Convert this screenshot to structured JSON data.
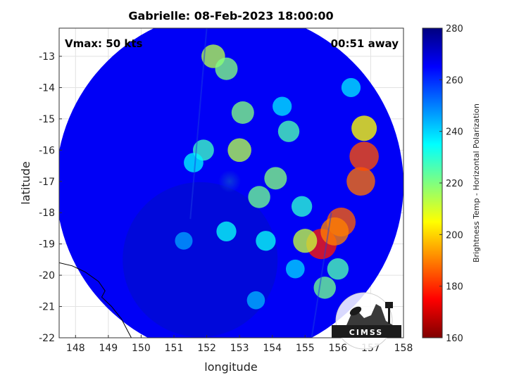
{
  "chart_data": {
    "type": "heatmap",
    "title": "Gabrielle: 08-Feb-2023 18:00:00",
    "xlabel": "longitude",
    "ylabel": "latitude",
    "xlim": [
      147.5,
      158
    ],
    "ylim": [
      -22,
      -12.1
    ],
    "xticks": [
      148,
      149,
      150,
      151,
      152,
      153,
      154,
      155,
      156,
      157,
      158
    ],
    "yticks": [
      -13,
      -14,
      -15,
      -16,
      -17,
      -18,
      -19,
      -20,
      -21,
      -22
    ],
    "grid": true,
    "annotations": {
      "vmax": "Vmax: 50 kts",
      "time_away": "00:51 away"
    },
    "colorbar": {
      "label": "Brightness Temp - Horizontal Polarization",
      "range": [
        160,
        280
      ],
      "ticks": [
        160,
        180,
        200,
        220,
        240,
        260,
        280
      ]
    },
    "scan": {
      "center": [
        152.7,
        -17.1
      ],
      "radius_deg": 5.3
    },
    "cold_cells": [
      {
        "lon": 155.5,
        "lat": -19.0,
        "tb": 178
      },
      {
        "lon": 156.1,
        "lat": -18.3,
        "tb": 186
      },
      {
        "lon": 155.9,
        "lat": -18.6,
        "tb": 190
      },
      {
        "lon": 156.7,
        "lat": -17.0,
        "tb": 188
      },
      {
        "lon": 156.8,
        "lat": -16.2,
        "tb": 184
      },
      {
        "lon": 156.8,
        "lat": -15.3,
        "tb": 205
      },
      {
        "lon": 155.0,
        "lat": -18.9,
        "tb": 212
      },
      {
        "lon": 155.6,
        "lat": -20.4,
        "tb": 222
      },
      {
        "lon": 156.0,
        "lat": -19.8,
        "tb": 226
      },
      {
        "lon": 152.2,
        "lat": -13.0,
        "tb": 214
      },
      {
        "lon": 152.6,
        "lat": -13.4,
        "tb": 220
      },
      {
        "lon": 153.0,
        "lat": -16.0,
        "tb": 214
      },
      {
        "lon": 153.1,
        "lat": -14.8,
        "tb": 220
      },
      {
        "lon": 154.1,
        "lat": -16.9,
        "tb": 220
      },
      {
        "lon": 154.5,
        "lat": -15.4,
        "tb": 226
      },
      {
        "lon": 153.6,
        "lat": -17.5,
        "tb": 222
      },
      {
        "lon": 151.9,
        "lat": -16.0,
        "tb": 228
      },
      {
        "lon": 152.6,
        "lat": -18.6,
        "tb": 234
      },
      {
        "lon": 153.8,
        "lat": -18.9,
        "tb": 234
      },
      {
        "lon": 154.7,
        "lat": -19.8,
        "tb": 240
      },
      {
        "lon": 151.6,
        "lat": -16.4,
        "tb": 236
      },
      {
        "lon": 153.5,
        "lat": -20.8,
        "tb": 244
      },
      {
        "lon": 151.3,
        "lat": -18.9,
        "tb": 246
      },
      {
        "lon": 154.3,
        "lat": -14.6,
        "tb": 238
      },
      {
        "lon": 156.4,
        "lat": -14.0,
        "tb": 238
      },
      {
        "lon": 154.9,
        "lat": -17.8,
        "tb": 230
      }
    ],
    "coastline": [
      [
        147.5,
        -19.6
      ],
      [
        147.9,
        -19.7
      ],
      [
        148.3,
        -19.9
      ],
      [
        148.7,
        -20.2
      ],
      [
        148.9,
        -20.5
      ],
      [
        148.8,
        -20.7
      ],
      [
        149.1,
        -21.0
      ],
      [
        149.4,
        -21.4
      ],
      [
        149.6,
        -21.8
      ],
      [
        149.7,
        -22.0
      ]
    ],
    "logo_text": "CIMSS"
  }
}
